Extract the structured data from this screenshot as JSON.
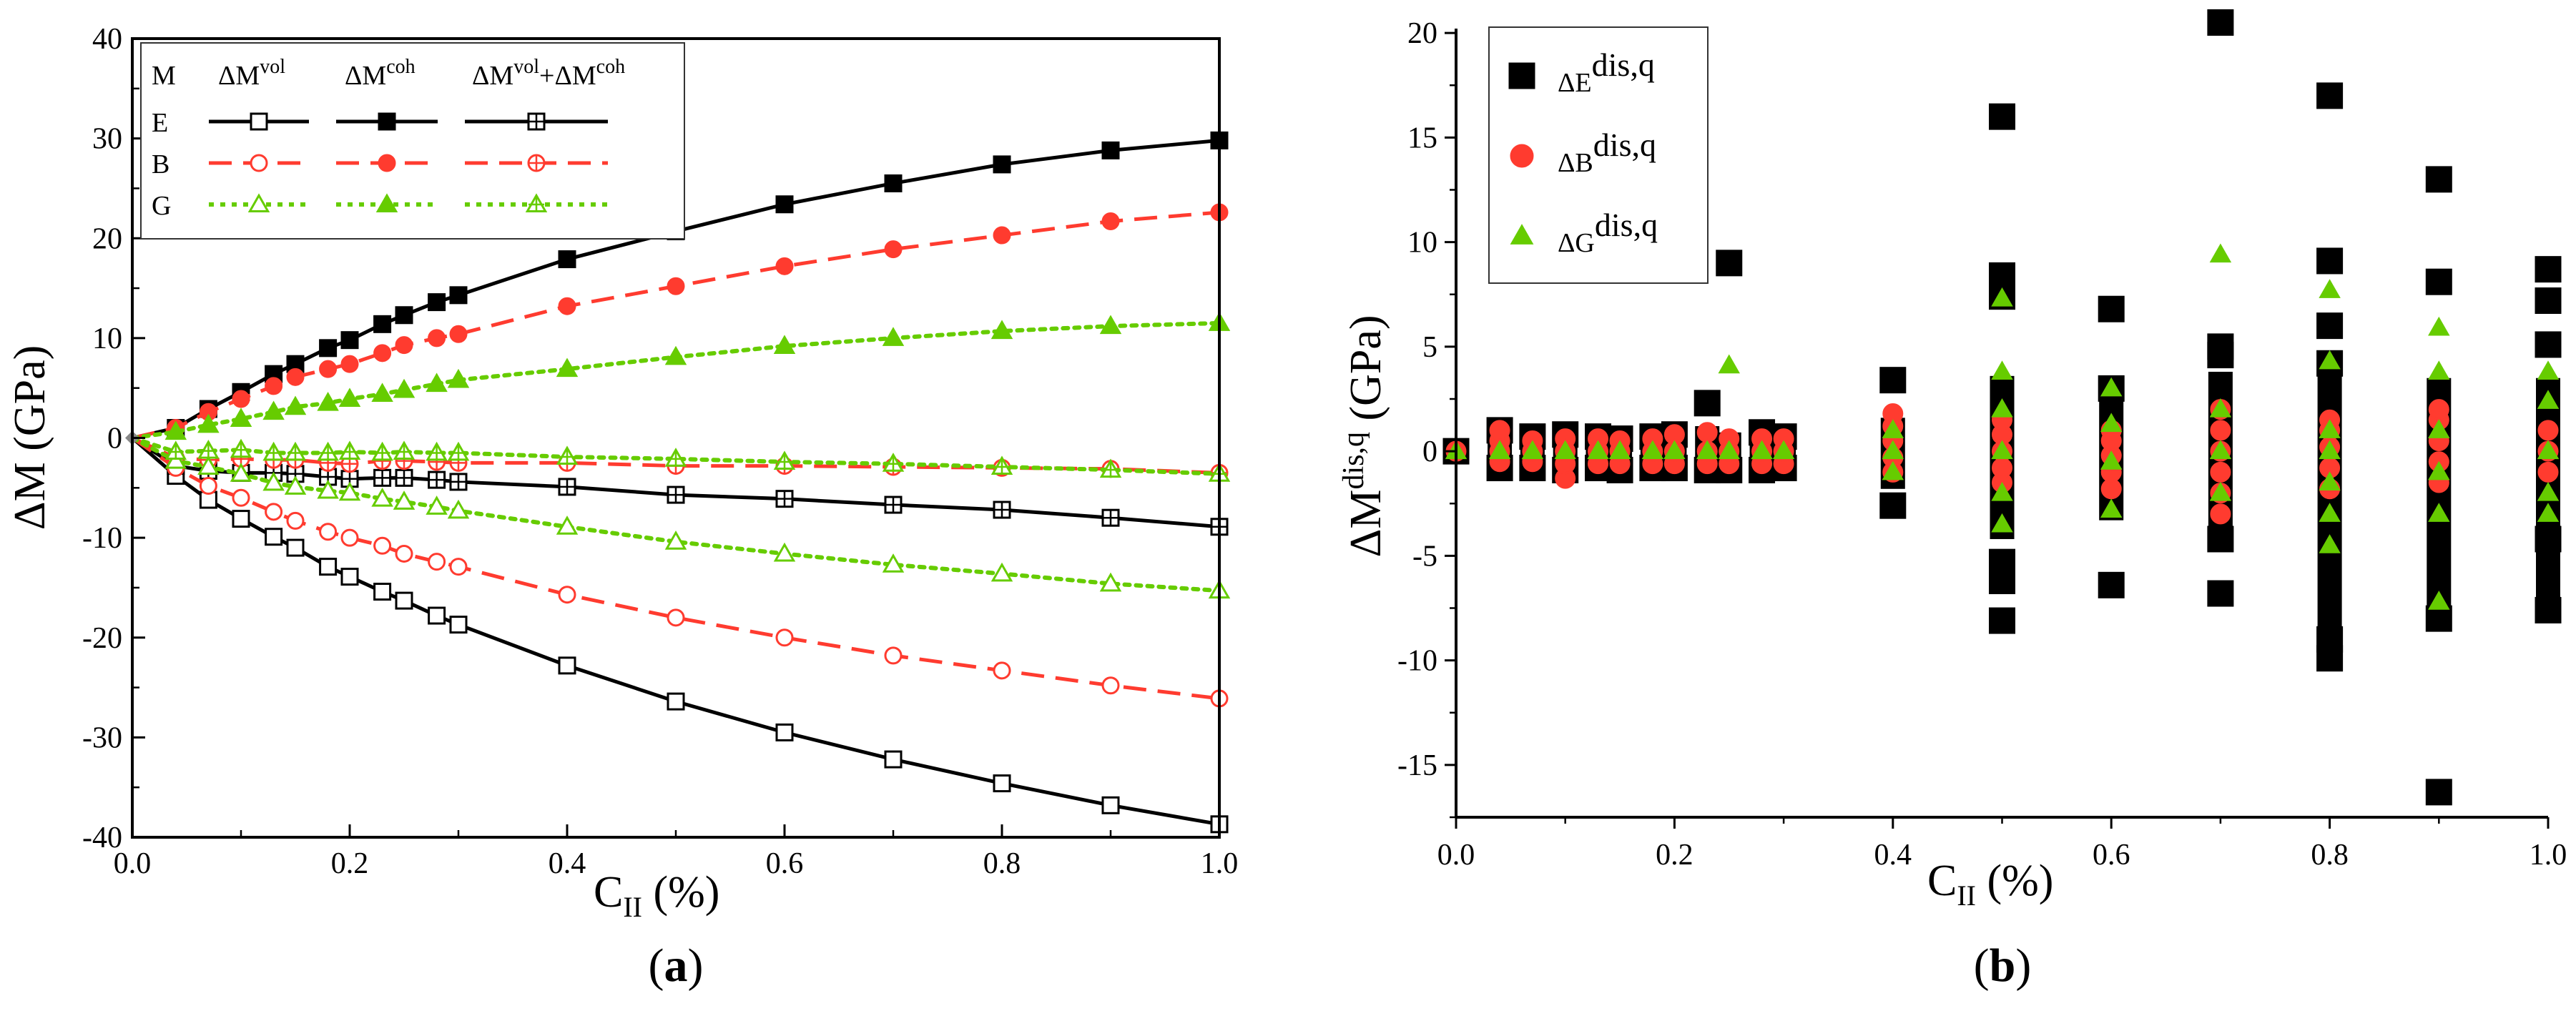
{
  "colors": {
    "E": "#000000",
    "B": "#ff3b2f",
    "G": "#66cc00"
  },
  "panels": [
    {
      "label": "(a)",
      "label_bold": "a",
      "ylabel_main": "ΔM (GPa)",
      "xlabel_main": "C",
      "xlabel_sub": "II",
      "xlabel_rest": " (%)"
    },
    {
      "label": "(b)",
      "label_bold": "b",
      "ylabel_main": "ΔM",
      "ylabel_sup": "dis,q",
      "ylabel_rest": " (GPa)",
      "xlabel_main": "C",
      "xlabel_sub": "II",
      "xlabel_rest": " (%)"
    }
  ],
  "legend_a": {
    "corner": "M",
    "col1_main": "ΔM",
    "col1_sup": "vol",
    "col2_main": "ΔM",
    "col2_sup": "coh",
    "col3_a": "ΔM",
    "col3_a_sup": "vol",
    "col3_plus": "+ΔM",
    "col3_b_sup": "coh",
    "rows": [
      "E",
      "B",
      "G"
    ]
  },
  "legend_b": {
    "entries": [
      {
        "main": "ΔE",
        "sup": "dis,q",
        "key": "E"
      },
      {
        "main": "ΔB",
        "sup": "dis,q",
        "key": "B"
      },
      {
        "main": "ΔG",
        "sup": "dis,q",
        "key": "G"
      }
    ]
  },
  "chart_data": [
    {
      "type": "line",
      "panel": "a",
      "xlabel": "C_II (%)",
      "ylabel": "ΔM (GPa)",
      "xlim": [
        0.0,
        1.0
      ],
      "ylim": [
        -40,
        40
      ],
      "xticks": [
        "0.0",
        "0.2",
        "0.4",
        "0.6",
        "0.8",
        "1.0"
      ],
      "yticks": [
        "40",
        "30",
        "20",
        "10",
        "0",
        "-10",
        "-20",
        "-30",
        "-40"
      ],
      "x": [
        0,
        0.04,
        0.07,
        0.1,
        0.13,
        0.15,
        0.18,
        0.2,
        0.23,
        0.25,
        0.28,
        0.3,
        0.4,
        0.5,
        0.6,
        0.7,
        0.8,
        0.9,
        1.0
      ],
      "series": [
        {
          "name": "E ΔMvol",
          "modulus": "E",
          "kind": "vol",
          "marker": "open-square",
          "dash": "solid",
          "values": [
            0,
            -3.8,
            -6.2,
            -8.1,
            -9.9,
            -11.0,
            -12.9,
            -13.9,
            -15.4,
            -16.3,
            -17.8,
            -18.7,
            -22.8,
            -26.4,
            -29.5,
            -32.2,
            -34.6,
            -36.8,
            -38.7
          ]
        },
        {
          "name": "E ΔMcoh",
          "modulus": "E",
          "kind": "coh",
          "marker": "filled-square",
          "dash": "solid",
          "values": [
            0,
            1.0,
            2.9,
            4.6,
            6.4,
            7.4,
            9.0,
            9.8,
            11.4,
            12.3,
            13.6,
            14.3,
            17.9,
            20.7,
            23.4,
            25.5,
            27.4,
            28.8,
            29.8
          ]
        },
        {
          "name": "E ΔMvol+ΔMcoh",
          "modulus": "E",
          "kind": "sum",
          "marker": "crossed-square",
          "dash": "solid",
          "values": [
            0,
            -2.8,
            -3.3,
            -3.5,
            -3.5,
            -3.6,
            -3.9,
            -4.1,
            -4.0,
            -4.0,
            -4.2,
            -4.4,
            -4.9,
            -5.7,
            -6.1,
            -6.7,
            -7.2,
            -8.0,
            -8.9
          ]
        },
        {
          "name": "B ΔMvol",
          "modulus": "B",
          "kind": "vol",
          "marker": "open-circle",
          "dash": "dash",
          "values": [
            0,
            -3.0,
            -4.8,
            -6.0,
            -7.4,
            -8.3,
            -9.4,
            -10.0,
            -10.8,
            -11.6,
            -12.4,
            -12.9,
            -15.7,
            -18.0,
            -20.0,
            -21.8,
            -23.3,
            -24.8,
            -26.1
          ]
        },
        {
          "name": "B ΔMcoh",
          "modulus": "B",
          "kind": "coh",
          "marker": "filled-circle",
          "dash": "dash",
          "values": [
            0,
            1.0,
            2.6,
            3.9,
            5.2,
            6.1,
            6.9,
            7.4,
            8.5,
            9.3,
            10.0,
            10.4,
            13.2,
            15.2,
            17.2,
            18.9,
            20.3,
            21.7,
            22.6
          ]
        },
        {
          "name": "B ΔMvol+ΔMcoh",
          "modulus": "B",
          "kind": "sum",
          "marker": "crossed-circle",
          "dash": "dash",
          "values": [
            0,
            -2.0,
            -2.2,
            -2.1,
            -2.2,
            -2.2,
            -2.5,
            -2.6,
            -2.3,
            -2.3,
            -2.4,
            -2.5,
            -2.5,
            -2.8,
            -2.8,
            -2.9,
            -3.0,
            -3.1,
            -3.5
          ]
        },
        {
          "name": "G ΔMvol",
          "modulus": "G",
          "kind": "vol",
          "marker": "open-triangle",
          "dash": "dot",
          "values": [
            0,
            -2.3,
            -2.9,
            -3.6,
            -4.5,
            -4.9,
            -5.3,
            -5.5,
            -6.1,
            -6.4,
            -6.9,
            -7.3,
            -8.9,
            -10.4,
            -11.6,
            -12.7,
            -13.6,
            -14.6,
            -15.3
          ]
        },
        {
          "name": "G ΔMcoh",
          "modulus": "G",
          "kind": "coh",
          "marker": "filled-triangle",
          "dash": "dot",
          "values": [
            0,
            0.6,
            1.3,
            1.9,
            2.6,
            3.1,
            3.5,
            3.9,
            4.4,
            4.8,
            5.4,
            5.8,
            6.9,
            8.1,
            9.2,
            10.0,
            10.7,
            11.2,
            11.5
          ]
        },
        {
          "name": "G ΔMvol+ΔMcoh",
          "modulus": "G",
          "kind": "sum",
          "marker": "crossed-triangle",
          "dash": "dot",
          "values": [
            0,
            -1.4,
            -1.3,
            -1.2,
            -1.5,
            -1.5,
            -1.5,
            -1.4,
            -1.5,
            -1.4,
            -1.5,
            -1.5,
            -1.9,
            -2.1,
            -2.4,
            -2.6,
            -2.9,
            -3.2,
            -3.6
          ]
        }
      ]
    },
    {
      "type": "scatter",
      "panel": "b",
      "xlabel": "C_II (%)",
      "ylabel": "ΔM^dis,q (GPa)",
      "xlim": [
        0.0,
        1.0
      ],
      "ylim": [
        -17.5,
        22.5
      ],
      "xticks": [
        "0.0",
        "0.2",
        "0.4",
        "0.6",
        "0.8",
        "1.0"
      ],
      "yticks": [
        "20",
        "15",
        "10",
        "5",
        "0",
        "-5",
        "-10",
        "-15"
      ],
      "legend_position": "top-left",
      "series": [
        {
          "name": "ΔEdis,q",
          "modulus": "E",
          "marker": "filled-square",
          "columns": [
            {
              "x": 0.0,
              "band": [
                -0.2,
                0.2
              ],
              "points": [
                0
              ]
            },
            {
              "x": 0.04,
              "band": [
                -0.9,
                1.1
              ],
              "points": [
                -0.8,
                1.0
              ]
            },
            {
              "x": 0.07,
              "band": [
                -0.9,
                0.8
              ],
              "points": [
                -0.8,
                0.7
              ]
            },
            {
              "x": 0.1,
              "band": [
                -1.0,
                0.9
              ],
              "points": [
                -0.9,
                0.8
              ]
            },
            {
              "x": 0.13,
              "band": [
                -0.9,
                0.8
              ],
              "points": [
                -0.8,
                0.7
              ]
            },
            {
              "x": 0.15,
              "band": [
                -1.0,
                0.7
              ],
              "points": [
                -0.9,
                0.6
              ]
            },
            {
              "x": 0.18,
              "band": [
                -0.9,
                0.8
              ],
              "points": [
                -0.8,
                0.7
              ]
            },
            {
              "x": 0.2,
              "band": [
                -0.9,
                0.9
              ],
              "points": [
                -0.8,
                0.8
              ]
            },
            {
              "x": 0.23,
              "band": [
                -1.0,
                1.2
              ],
              "points": [
                2.3,
                -0.9
              ]
            },
            {
              "x": 0.25,
              "band": [
                -1.0,
                0.9
              ],
              "points": [
                9.0,
                -0.9
              ]
            },
            {
              "x": 0.28,
              "band": [
                -1.0,
                1.0
              ],
              "points": [
                -0.9,
                0.9
              ]
            },
            {
              "x": 0.3,
              "band": [
                -0.9,
                0.8
              ],
              "points": [
                -0.8,
                0.7
              ]
            },
            {
              "x": 0.4,
              "band": [
                -1.8,
                1.6
              ],
              "points": [
                3.4,
                -2.6
              ]
            },
            {
              "x": 0.5,
              "band": [
                -4.2,
                3.6
              ],
              "points": [
                16.0,
                8.4,
                7.4,
                -5.3,
                -6.2,
                -8.1
              ]
            },
            {
              "x": 0.6,
              "band": [
                -3.3,
                3.3
              ],
              "points": [
                6.8,
                3.0,
                -6.4
              ]
            },
            {
              "x": 0.7,
              "band": [
                -4.0,
                3.8
              ],
              "points": [
                20.5,
                5.0,
                4.6,
                -4.2,
                -6.8
              ]
            },
            {
              "x": 0.8,
              "band": [
                -8.5,
                4.5
              ],
              "points": [
                17.0,
                9.1,
                6.0,
                4.2,
                -9.0,
                -9.9
              ]
            },
            {
              "x": 0.9,
              "band": [
                -8.0,
                3.5
              ],
              "points": [
                13.0,
                8.1,
                -16.3,
                -8.0
              ]
            },
            {
              "x": 1.0,
              "band": [
                -7.5,
                3.5
              ],
              "points": [
                8.7,
                7.2,
                5.1,
                -4.2,
                -7.6
              ]
            }
          ]
        },
        {
          "name": "ΔBdis,q",
          "modulus": "B",
          "marker": "filled-circle",
          "columns": [
            {
              "x": 0.0,
              "values": [
                0.0
              ]
            },
            {
              "x": 0.04,
              "values": [
                -0.5,
                0.0,
                0.5,
                1.0
              ]
            },
            {
              "x": 0.07,
              "values": [
                -0.5,
                0.0,
                0.5
              ]
            },
            {
              "x": 0.1,
              "values": [
                -1.3,
                -0.6,
                0.0,
                0.6
              ]
            },
            {
              "x": 0.13,
              "values": [
                -0.6,
                0.0,
                0.6
              ]
            },
            {
              "x": 0.15,
              "values": [
                -0.6,
                0.0,
                0.5
              ]
            },
            {
              "x": 0.18,
              "values": [
                -0.6,
                0.0,
                0.6
              ]
            },
            {
              "x": 0.2,
              "values": [
                -0.6,
                0.0,
                0.8
              ]
            },
            {
              "x": 0.23,
              "values": [
                -0.6,
                0.0,
                0.9
              ]
            },
            {
              "x": 0.25,
              "values": [
                -0.6,
                0.0,
                0.6
              ]
            },
            {
              "x": 0.28,
              "values": [
                -0.6,
                0.0,
                0.6
              ]
            },
            {
              "x": 0.3,
              "values": [
                -0.6,
                0.0,
                0.6
              ]
            },
            {
              "x": 0.4,
              "values": [
                -1.0,
                -0.3,
                0.5,
                1.2,
                1.8
              ]
            },
            {
              "x": 0.5,
              "values": [
                -1.5,
                -0.8,
                0.0,
                0.8,
                1.5
              ]
            },
            {
              "x": 0.6,
              "values": [
                -1.8,
                -1.0,
                -0.2,
                0.5,
                1.0
              ]
            },
            {
              "x": 0.7,
              "values": [
                -3.0,
                -2.0,
                -1.0,
                0.0,
                1.0,
                2.0
              ]
            },
            {
              "x": 0.8,
              "values": [
                -1.8,
                -0.8,
                0.2,
                1.0,
                1.5
              ]
            },
            {
              "x": 0.9,
              "values": [
                -1.5,
                -0.5,
                0.5,
                1.5,
                2.0
              ]
            },
            {
              "x": 1.0,
              "values": [
                -1.0,
                0.0,
                1.0
              ]
            }
          ]
        },
        {
          "name": "ΔGdis,q",
          "modulus": "G",
          "marker": "filled-triangle",
          "columns": [
            {
              "x": 0.0,
              "values": [
                0.0
              ]
            },
            {
              "x": 0.04,
              "values": [
                0.0
              ]
            },
            {
              "x": 0.07,
              "values": [
                0.0
              ]
            },
            {
              "x": 0.1,
              "values": [
                0.0
              ]
            },
            {
              "x": 0.13,
              "values": [
                0.0
              ]
            },
            {
              "x": 0.15,
              "values": [
                0.0
              ]
            },
            {
              "x": 0.18,
              "values": [
                0.0
              ]
            },
            {
              "x": 0.2,
              "values": [
                0.0
              ]
            },
            {
              "x": 0.23,
              "values": [
                0.0
              ]
            },
            {
              "x": 0.25,
              "values": [
                4.1,
                0.0
              ]
            },
            {
              "x": 0.28,
              "values": [
                0.0
              ]
            },
            {
              "x": 0.3,
              "values": [
                0.0
              ]
            },
            {
              "x": 0.4,
              "values": [
                1.0,
                0.0,
                -1.0
              ]
            },
            {
              "x": 0.5,
              "values": [
                7.3,
                3.8,
                2.0,
                0.0,
                -2.0,
                -3.5
              ]
            },
            {
              "x": 0.6,
              "values": [
                3.0,
                1.3,
                -0.5,
                -2.8
              ]
            },
            {
              "x": 0.7,
              "values": [
                9.4,
                2.0,
                0.0,
                -2.0
              ]
            },
            {
              "x": 0.8,
              "values": [
                7.7,
                4.3,
                1.0,
                0.0,
                -1.5,
                -3.0,
                -4.5
              ]
            },
            {
              "x": 0.9,
              "values": [
                5.9,
                3.8,
                1.0,
                -1.0,
                -3.0,
                -7.2
              ]
            },
            {
              "x": 1.0,
              "values": [
                3.8,
                2.4,
                0.0,
                -2.0,
                -3.0
              ]
            }
          ]
        }
      ]
    }
  ]
}
